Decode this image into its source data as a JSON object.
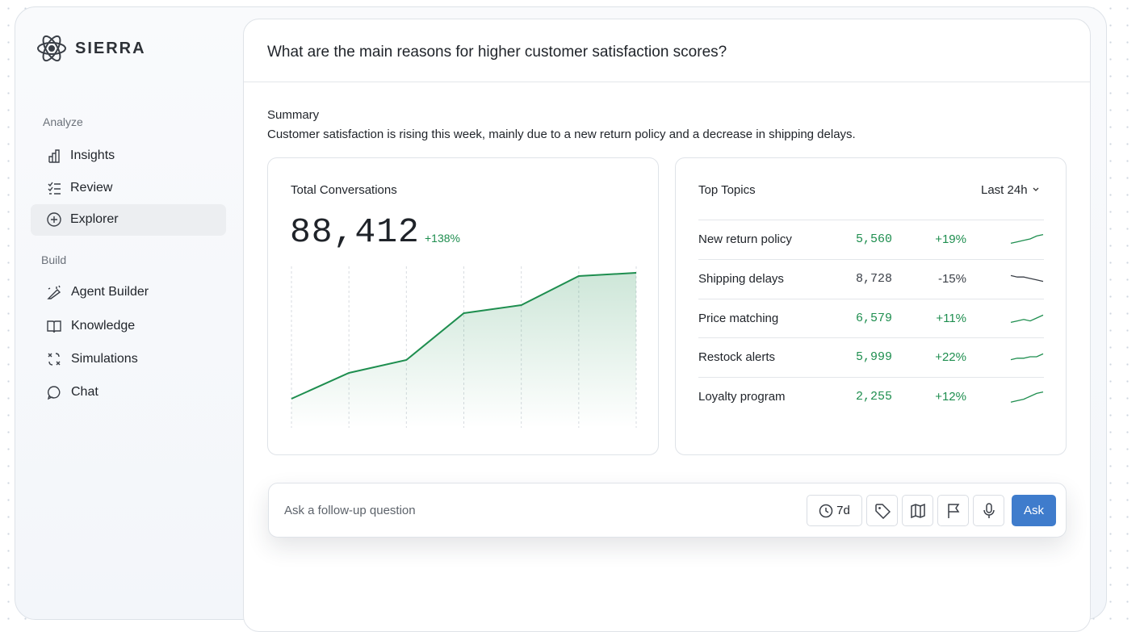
{
  "sidebar": {
    "brand": "SIERRA",
    "sections": [
      {
        "title": "Analyze",
        "items": [
          "Insights",
          "Review",
          "Explorer"
        ]
      },
      {
        "title": "Build",
        "items": [
          "Agent Builder",
          "Knowledge",
          "Simulations",
          "Chat"
        ]
      }
    ]
  },
  "question": "What are the main reasons for higher customer satisfaction scores?",
  "summary": {
    "title": "Summary",
    "text": "Customer satisfaction is rising this week, mainly due to a new return policy and a decrease in shipping delays."
  },
  "total_conversations": {
    "title": "Total Conversations",
    "value": "88,412",
    "change": "+138%",
    "chart": {
      "type": "line",
      "categories": [
        null,
        null,
        null,
        null,
        null,
        null,
        null
      ],
      "values": [
        18,
        34,
        42,
        71,
        76,
        94,
        96
      ],
      "ylim": [
        0,
        100
      ],
      "color": "#1e8e4f",
      "grid": true
    }
  },
  "top_topics": {
    "title": "Top Topics",
    "period": "Last 24h",
    "trend_ylim": [
      0,
      10
    ],
    "up_color": "#1e8e4f",
    "down_color": "#3a3f47",
    "rows": [
      {
        "name": "New return policy",
        "count": "5,560",
        "change": "+19%",
        "trend": [
          2,
          3,
          4,
          5,
          7,
          8
        ]
      },
      {
        "name": "Shipping delays",
        "count": "8,728",
        "change": "-15%",
        "trend": [
          7,
          6,
          6,
          5,
          4,
          3
        ]
      },
      {
        "name": "Price matching",
        "count": "6,579",
        "change": "+11%",
        "trend": [
          2,
          3,
          4,
          3,
          5,
          7
        ]
      },
      {
        "name": "Restock alerts",
        "count": "5,999",
        "change": "+22%",
        "trend": [
          3,
          4,
          4,
          5,
          5,
          7
        ]
      },
      {
        "name": "Loyalty program",
        "count": "2,255",
        "change": "+12%",
        "trend": [
          1,
          2,
          3,
          5,
          7,
          8
        ]
      }
    ]
  },
  "follow_up": {
    "placeholder": "Ask a follow-up question",
    "range": "7d",
    "button": "Ask"
  }
}
